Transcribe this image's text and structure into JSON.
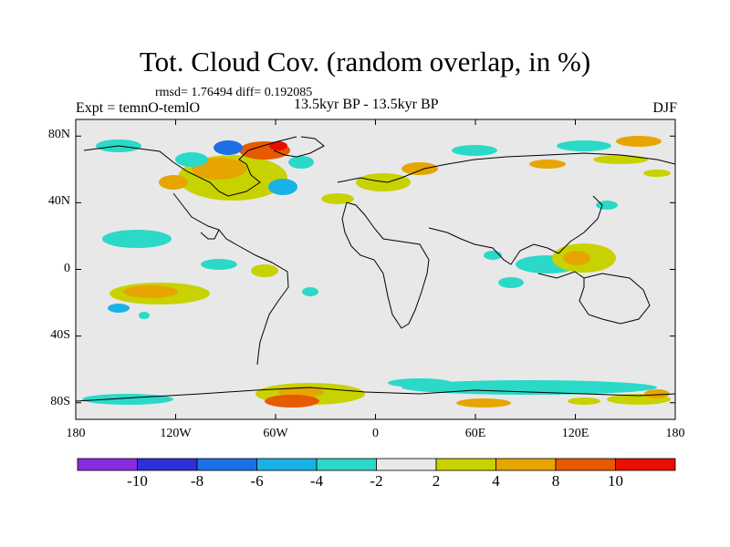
{
  "title": "Tot. Cloud Cov. (random overlap, in %)",
  "stats": "rmsd= 1.76494  diff= 0.192085",
  "experiment": "Expt = temnO-temlO",
  "period": "13.5kyr BP - 13.5kyr BP",
  "season": "DJF",
  "axes": {
    "y_ticks": [
      {
        "label": "80N",
        "lat": 80
      },
      {
        "label": "40N",
        "lat": 40
      },
      {
        "label": "0",
        "lat": 0
      },
      {
        "label": "40S",
        "lat": -40
      },
      {
        "label": "80S",
        "lat": -80
      }
    ],
    "x_ticks": [
      {
        "label": "180",
        "lon": -180
      },
      {
        "label": "120W",
        "lon": -120
      },
      {
        "label": "60W",
        "lon": -60
      },
      {
        "label": "0",
        "lon": 0
      },
      {
        "label": "60E",
        "lon": 60
      },
      {
        "label": "120E",
        "lon": 120
      },
      {
        "label": "180",
        "lon": 180
      }
    ],
    "lat_range": [
      -90,
      90
    ],
    "lon_range": [
      -180,
      180
    ]
  },
  "colorbar": {
    "colors": [
      "#8a2be2",
      "#2f2fd9",
      "#1e6fe6",
      "#19b2e6",
      "#2ad9c8",
      "#e8e8e8",
      "#c8d200",
      "#e6a500",
      "#e65a00",
      "#e60f00"
    ],
    "labels": [
      "-10",
      "-8",
      "-6",
      "-4",
      "-2",
      "2",
      "4",
      "8",
      "10"
    ]
  },
  "colors": {
    "background_field": "#e8e8e8",
    "coastline": "#000000"
  }
}
